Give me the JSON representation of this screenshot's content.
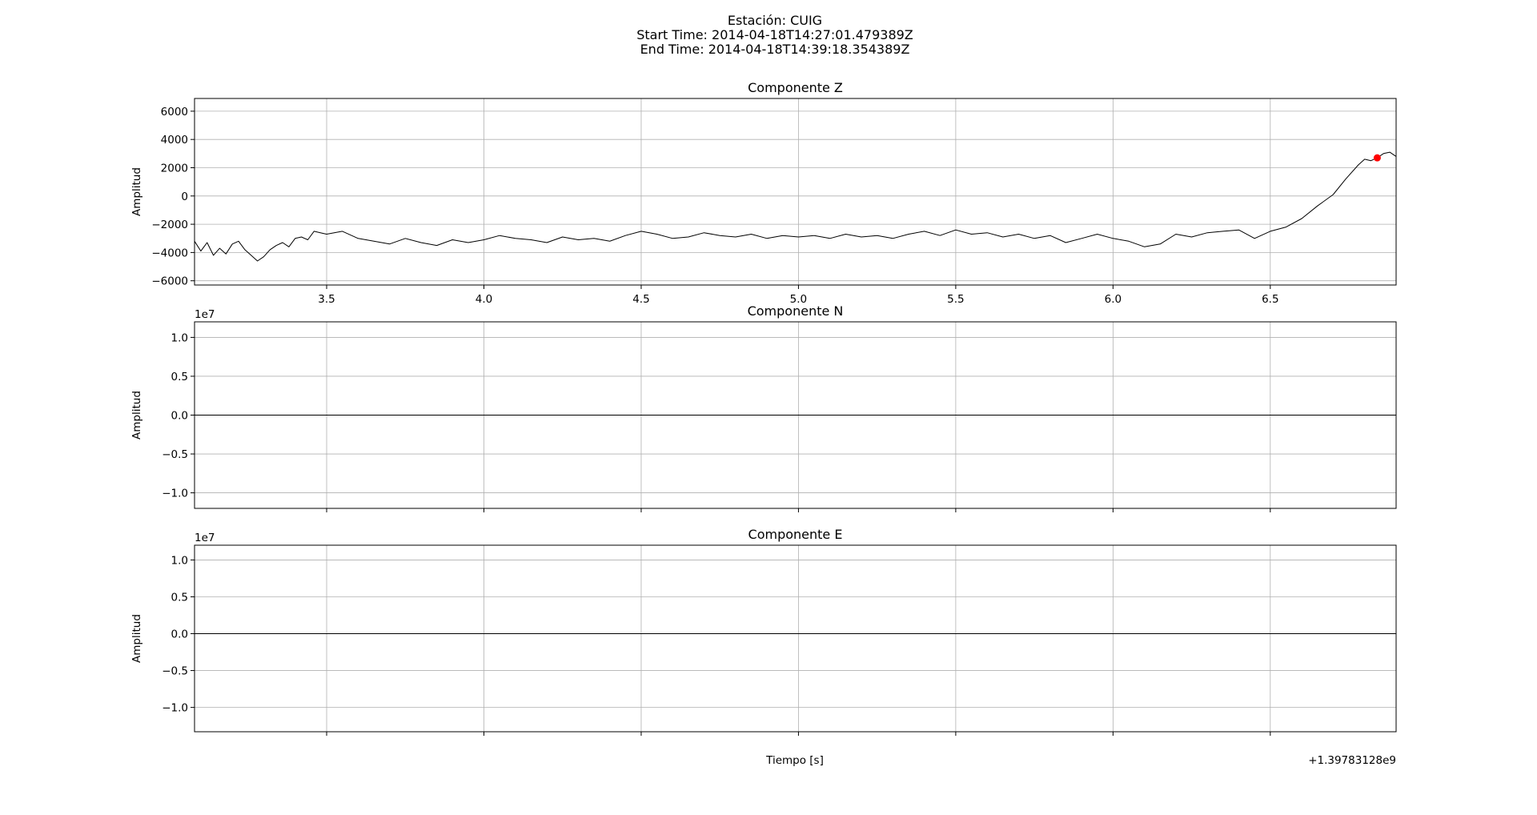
{
  "figure": {
    "title_lines": [
      "Estación: CUIG",
      "Start Time: 2014-04-18T14:27:01.479389Z",
      "End Time: 2014-04-18T14:39:18.354389Z"
    ],
    "xlabel": "Tiempo [s]",
    "x_offset_label": "+1.39783128e9"
  },
  "chart_data": [
    {
      "type": "line",
      "title": "Componente Z",
      "ylabel": "Amplitud",
      "xlim": [
        3.08,
        6.9
      ],
      "ylim": [
        -6300,
        6900
      ],
      "xticks": [
        3.5,
        4.0,
        4.5,
        5.0,
        5.5,
        6.0,
        6.5
      ],
      "xtick_labels": [
        "3.5",
        "4.0",
        "4.5",
        "5.0",
        "5.5",
        "6.0",
        "6.5"
      ],
      "yticks": [
        -6000,
        -4000,
        -2000,
        0,
        2000,
        4000,
        6000
      ],
      "ytick_labels": [
        "−6000",
        "−4000",
        "−2000",
        "0",
        "2000",
        "4000",
        "6000"
      ],
      "grid": true,
      "line_color": "#000000",
      "marker": {
        "x": 6.84,
        "y": 2700,
        "color": "#ff0000"
      },
      "series": [
        {
          "x": [
            3.08,
            3.1,
            3.12,
            3.14,
            3.16,
            3.18,
            3.2,
            3.22,
            3.24,
            3.26,
            3.28,
            3.3,
            3.32,
            3.34,
            3.36,
            3.38,
            3.4,
            3.42,
            3.44,
            3.46,
            3.48,
            3.5,
            3.55,
            3.6,
            3.65,
            3.7,
            3.75,
            3.8,
            3.85,
            3.9,
            3.95,
            4.0,
            4.05,
            4.1,
            4.15,
            4.2,
            4.25,
            4.3,
            4.35,
            4.4,
            4.45,
            4.5,
            4.55,
            4.6,
            4.65,
            4.7,
            4.75,
            4.8,
            4.85,
            4.9,
            4.95,
            5.0,
            5.05,
            5.1,
            5.15,
            5.2,
            5.25,
            5.3,
            5.35,
            5.4,
            5.45,
            5.5,
            5.55,
            5.6,
            5.65,
            5.7,
            5.75,
            5.8,
            5.85,
            5.9,
            5.95,
            6.0,
            6.05,
            6.1,
            6.15,
            6.2,
            6.25,
            6.3,
            6.35,
            6.4,
            6.45,
            6.5,
            6.55,
            6.6,
            6.65,
            6.7,
            6.74,
            6.78,
            6.8,
            6.82,
            6.84,
            6.86,
            6.88,
            6.9
          ],
          "y": [
            -3200,
            -3900,
            -3300,
            -4200,
            -3700,
            -4100,
            -3400,
            -3200,
            -3800,
            -4200,
            -4600,
            -4300,
            -3800,
            -3500,
            -3300,
            -3600,
            -3000,
            -2900,
            -3100,
            -2500,
            -2600,
            -2700,
            -2500,
            -3000,
            -3200,
            -3400,
            -3000,
            -3300,
            -3500,
            -3100,
            -3300,
            -3100,
            -2800,
            -3000,
            -3100,
            -3300,
            -2900,
            -3100,
            -3000,
            -3200,
            -2800,
            -2500,
            -2700,
            -3000,
            -2900,
            -2600,
            -2800,
            -2900,
            -2700,
            -3000,
            -2800,
            -2900,
            -2800,
            -3000,
            -2700,
            -2900,
            -2800,
            -3000,
            -2700,
            -2500,
            -2800,
            -2400,
            -2700,
            -2600,
            -2900,
            -2700,
            -3000,
            -2800,
            -3300,
            -3000,
            -2700,
            -3000,
            -3200,
            -3600,
            -3400,
            -2700,
            -2900,
            -2600,
            -2500,
            -2400,
            -3000,
            -2500,
            -2200,
            -1600,
            -700,
            100,
            1200,
            2200,
            2600,
            2500,
            2700,
            3000,
            3100,
            2800
          ]
        }
      ]
    },
    {
      "type": "line",
      "title": "Componente N",
      "ylabel": "Amplitud",
      "y_offset_label": "1e7",
      "xlim": [
        3.08,
        6.9
      ],
      "ylim": [
        -1.2,
        1.2
      ],
      "xticks": [
        3.5,
        4.0,
        4.5,
        5.0,
        5.5,
        6.0,
        6.5
      ],
      "yticks": [
        -1.0,
        -0.5,
        0.0,
        0.5,
        1.0
      ],
      "ytick_labels": [
        "−1.0",
        "−0.5",
        "0.0",
        "0.5",
        "1.0"
      ],
      "grid": true,
      "line_color": "#000000",
      "series": [
        {
          "x": [
            3.08,
            6.9
          ],
          "y": [
            0,
            0
          ]
        }
      ]
    },
    {
      "type": "line",
      "title": "Componente E",
      "ylabel": "Amplitud",
      "y_offset_label": "1e7",
      "xlim": [
        3.08,
        6.9
      ],
      "ylim": [
        -1.33,
        1.2
      ],
      "xticks": [
        3.5,
        4.0,
        4.5,
        5.0,
        5.5,
        6.0,
        6.5
      ],
      "yticks": [
        -1.0,
        -0.5,
        0.0,
        0.5,
        1.0
      ],
      "ytick_labels": [
        "−1.0",
        "−0.5",
        "0.0",
        "0.5",
        "1.0"
      ],
      "grid": true,
      "line_color": "#000000",
      "series": [
        {
          "x": [
            3.08,
            6.9
          ],
          "y": [
            0,
            0
          ]
        }
      ]
    }
  ]
}
